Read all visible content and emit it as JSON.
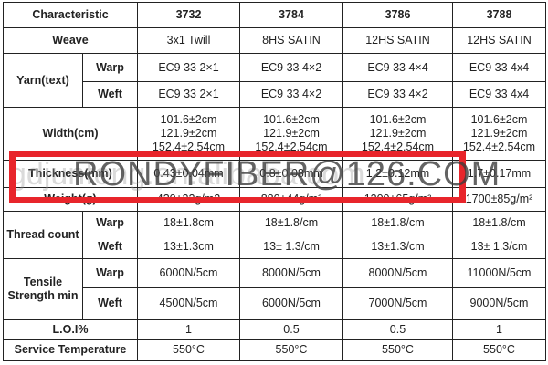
{
  "header": {
    "label": "Characteristic",
    "products": [
      "3732",
      "3784",
      "3786",
      "3788"
    ]
  },
  "rows": {
    "weave": {
      "label": "Weave",
      "values": [
        "3x1 Twill",
        "8HS SATIN",
        "12HS SATIN",
        "12HS SATIN"
      ]
    },
    "yarn": {
      "label": "Yarn(text)",
      "warp_label": "Warp",
      "weft_label": "Weft",
      "warp": [
        "EC9 33 2×1",
        "EC9 33 4×2",
        "EC9 33 4×4",
        "EC9 33 4x4"
      ],
      "weft": [
        "EC9 33 2×1",
        "EC9 33 4×2",
        "EC9 33 4×2",
        "EC9 33 4x4"
      ]
    },
    "width": {
      "label": "Width(cm)",
      "values": [
        [
          "101.6±2cm",
          "121.9±2cm",
          "152.4±2.54cm"
        ],
        [
          "101.6±2cm",
          "121.9±2cm",
          "152.4±2.54cm"
        ],
        [
          "101.6±2cm",
          "121.9±2cm",
          "152.4±2.54cm"
        ],
        [
          "101.6±2cm",
          "121.9±2cm",
          "152.4±2.54cm"
        ]
      ]
    },
    "thickness": {
      "label": "Thickness(mm)",
      "values": [
        "0.43±0.04mm",
        "0.8±0.08mm",
        "1.2±0.12mm",
        "1.7±0.17mm"
      ]
    },
    "weight": {
      "label": "Weight(g)",
      "values": [
        "430±22g/m2",
        "880±44g/m²",
        "1300±65g/m²",
        "1700±85g/m²"
      ]
    },
    "thread": {
      "label": "Thread count",
      "warp_label": "Warp",
      "weft_label": "Weft",
      "warp": [
        "18±1.8cm",
        "18±1.8/cm",
        "18±1.8/cm",
        "18±1.8/cm"
      ],
      "weft": [
        "13±1.3cm",
        "13± 1.3/cm",
        "13±1.3/cm",
        "13± 1.3/cm"
      ]
    },
    "tensile": {
      "label": "Tensile Strength min",
      "warp_label": "Warp",
      "weft_label": "Weft",
      "warp": [
        "6000N/5cm",
        "8000N/5cm",
        "8000N/5cm",
        "11000N/5cm"
      ],
      "weft": [
        "4500N/5cm",
        "6000N/5cm",
        "7000N/5cm",
        "9000N/5cm"
      ]
    },
    "loi": {
      "label": "L.O.I%",
      "values": [
        "1",
        "0.5",
        "0.5",
        "1"
      ]
    },
    "service": {
      "label": "Service Temperature",
      "values": [
        "550°C",
        "550°C",
        "550°C",
        "550°C"
      ]
    }
  },
  "watermark": {
    "email": "RONDYFIBER@126.COM",
    "site": "gdjunfeng.en.alibaba.com",
    "box_color": "#e8252b"
  }
}
